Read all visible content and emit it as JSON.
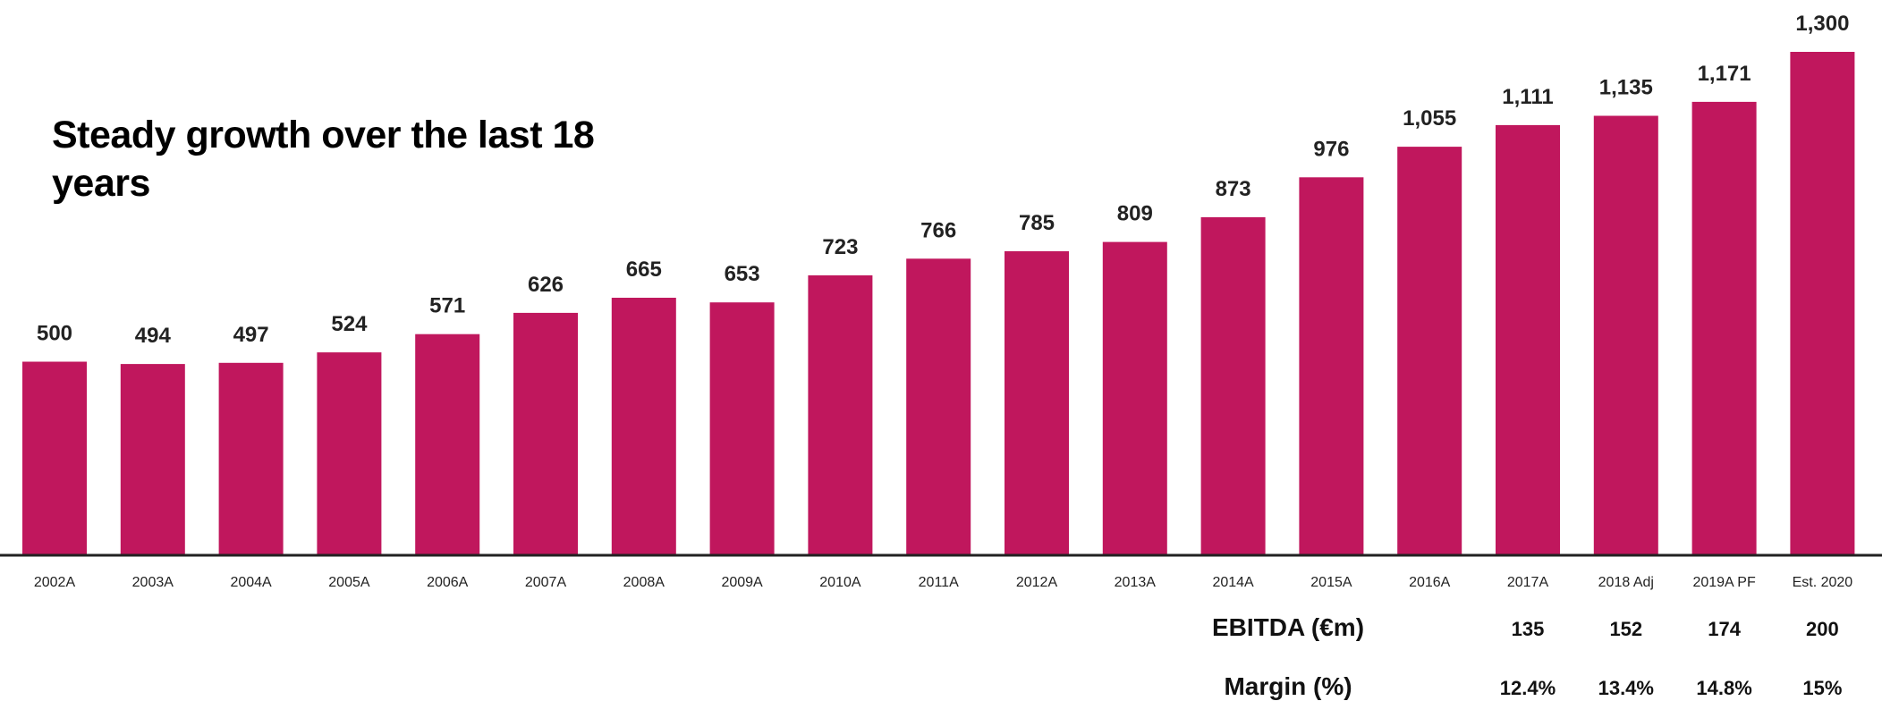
{
  "chart_data": {
    "type": "bar",
    "title": "Steady growth over the last 18 years",
    "categories": [
      "2002A",
      "2003A",
      "2004A",
      "2005A",
      "2006A",
      "2007A",
      "2008A",
      "2009A",
      "2010A",
      "2011A",
      "2012A",
      "2013A",
      "2014A",
      "2015A",
      "2016A",
      "2017A",
      "2018 Adj",
      "2019A PF",
      "Est. 2020"
    ],
    "values": [
      500,
      494,
      497,
      524,
      571,
      626,
      665,
      653,
      723,
      766,
      785,
      809,
      873,
      976,
      1055,
      1111,
      1135,
      1171,
      1300
    ],
    "value_labels": [
      "500",
      "494",
      "497",
      "524",
      "571",
      "626",
      "665",
      "653",
      "723",
      "766",
      "785",
      "809",
      "873",
      "976",
      "1,055",
      "1,111",
      "1,135",
      "1,171",
      "1,300"
    ],
    "ylim": [
      0,
      1300
    ],
    "grid": false,
    "bar_color": "#c0175d",
    "xlabel": "",
    "ylabel": ""
  },
  "table": {
    "rows": [
      {
        "title": "EBITDA (€m)",
        "values": [
          {
            "category": "2017A",
            "label": "135"
          },
          {
            "category": "2018 Adj",
            "label": "152"
          },
          {
            "category": "2019A PF",
            "label": "174"
          },
          {
            "category": "Est. 2020",
            "label": "200"
          }
        ]
      },
      {
        "title": "Margin (%)",
        "values": [
          {
            "category": "2017A",
            "label": "12.4%"
          },
          {
            "category": "2018 Adj",
            "label": "13.4%"
          },
          {
            "category": "2019A PF",
            "label": "14.8%"
          },
          {
            "category": "Est. 2020",
            "label": "15%"
          }
        ]
      }
    ]
  }
}
